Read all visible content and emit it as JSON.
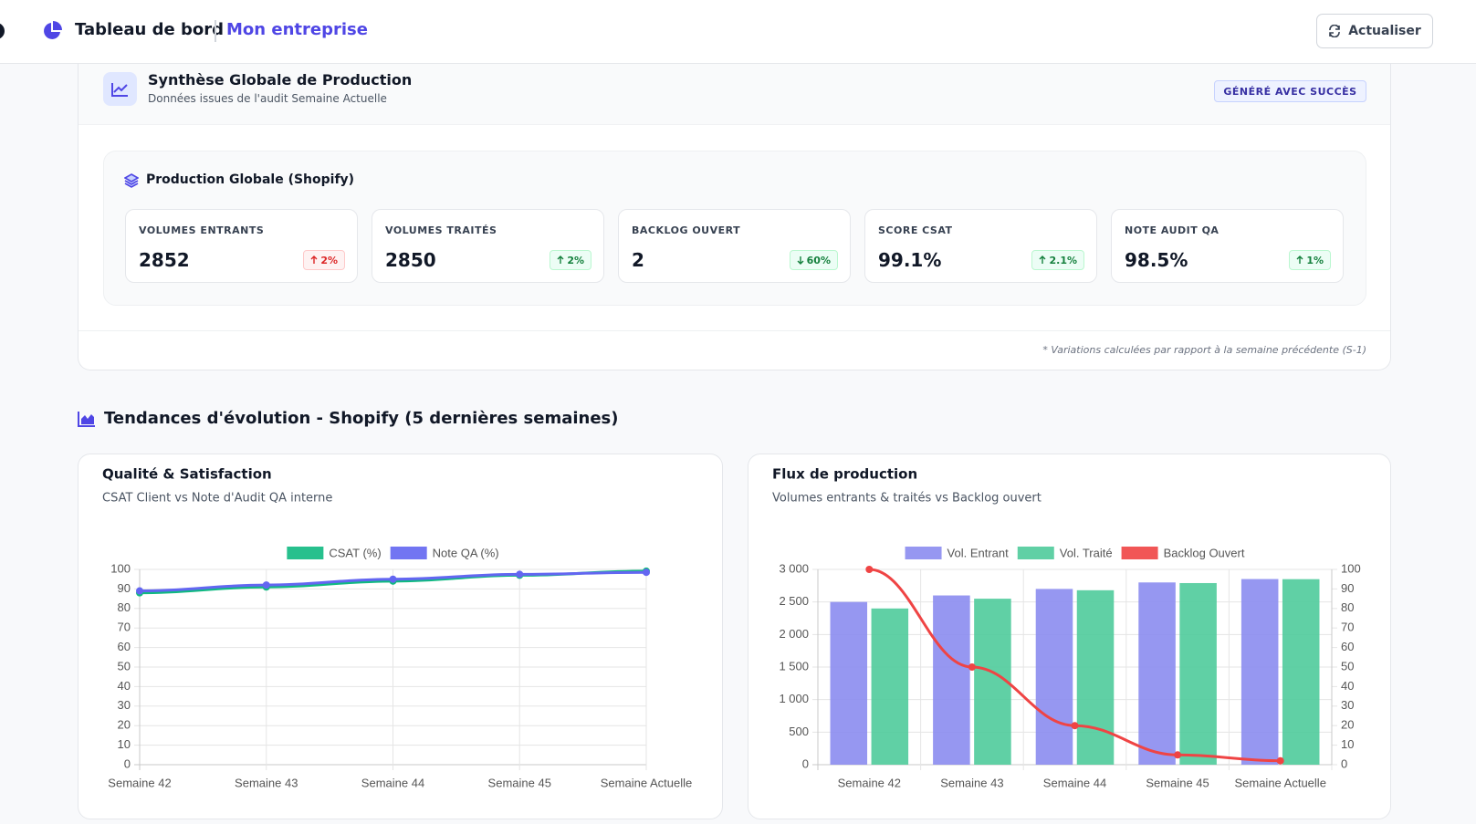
{
  "header": {
    "title": "Tableau de bord",
    "company": "Mon entreprise",
    "refresh": "Actualiser"
  },
  "summary": {
    "title": "Synthèse Globale de Production",
    "subtitle": "Données issues de l'audit Semaine Actuelle",
    "badge": "GÉNÉRÉ AVEC SUCCÈS",
    "panel_title": "Production Globale (Shopify)",
    "kpis": [
      {
        "label": "VOLUMES ENTRANTS",
        "value": "2852",
        "change": "2%"
      },
      {
        "label": "VOLUMES TRAITÉS",
        "value": "2850",
        "change": "2%"
      },
      {
        "label": "BACKLOG OUVERT",
        "value": "2",
        "change": "60%"
      },
      {
        "label": "SCORE CSAT",
        "value": "99.1%",
        "change": "2.1%"
      },
      {
        "label": "NOTE AUDIT QA",
        "value": "98.5%",
        "change": "1%"
      }
    ],
    "footnote": "* Variations calculées par rapport à la semaine précédente (S-1)"
  },
  "trends_title": "Tendances d'évolution - Shopify (5 dernières semaines)",
  "chart_data": [
    {
      "type": "line",
      "title": "Qualité & Satisfaction",
      "subtitle": "CSAT Client vs Note d'Audit QA interne",
      "categories": [
        "Semaine 42",
        "Semaine 43",
        "Semaine 44",
        "Semaine 45",
        "Semaine Actuelle"
      ],
      "series": [
        {
          "name": "CSAT (%)",
          "color": "#10b981",
          "values": [
            88,
            91,
            94,
            97,
            99.1
          ]
        },
        {
          "name": "Note QA (%)",
          "color": "#6366f1",
          "values": [
            89,
            92,
            95,
            97.5,
            98.5
          ]
        }
      ],
      "ylim": [
        0,
        100
      ],
      "yticks": [
        0,
        10,
        20,
        30,
        40,
        50,
        60,
        70,
        80,
        90,
        100
      ],
      "grid": true,
      "legend": "top"
    },
    {
      "type": "bar",
      "title": "Flux de production",
      "subtitle": "Volumes entrants & traités vs Backlog ouvert",
      "categories": [
        "Semaine 42",
        "Semaine 43",
        "Semaine 44",
        "Semaine 45",
        "Semaine Actuelle"
      ],
      "series": [
        {
          "name": "Vol. Entrant",
          "color": "#8b8cf0",
          "values": [
            2500,
            2600,
            2700,
            2800,
            2852
          ]
        },
        {
          "name": "Vol. Traité",
          "color": "#4fcb9b",
          "values": [
            2400,
            2550,
            2680,
            2790,
            2850
          ]
        },
        {
          "name": "Backlog Ouvert",
          "color": "#ef4444",
          "type": "line",
          "axis": "y2",
          "values": [
            100,
            50,
            20,
            5,
            2
          ]
        }
      ],
      "ylim": [
        0,
        3000
      ],
      "yticks": [
        0,
        500,
        {
          "value": 1000,
          "label": "1 000"
        },
        {
          "value": 1500,
          "label": "1 500"
        },
        {
          "value": 2000,
          "label": "2 000"
        },
        {
          "value": 2500,
          "label": "2 500"
        },
        {
          "value": 3000,
          "label": "3 000"
        }
      ],
      "y2lim": [
        0,
        100
      ],
      "y2ticks": [
        0,
        10,
        20,
        30,
        40,
        50,
        60,
        70,
        80,
        90,
        100
      ],
      "grid": true,
      "legend": "top"
    }
  ]
}
